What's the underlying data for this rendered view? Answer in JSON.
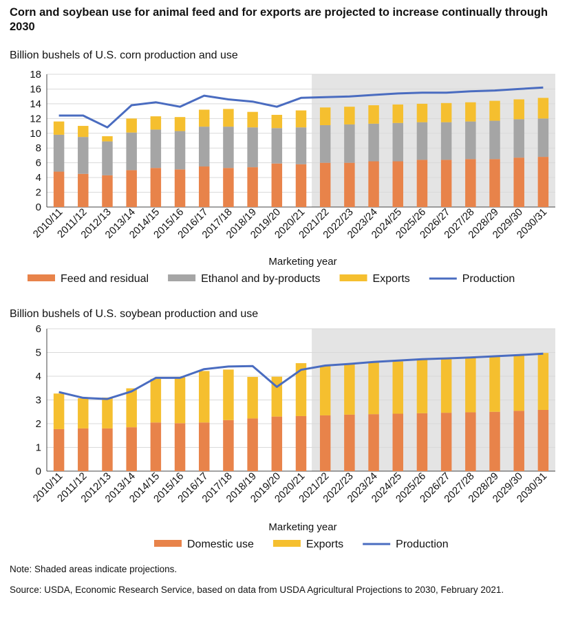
{
  "title": "Corn and soybean use for animal feed and for exports are projected to increase continually through 2030",
  "note": "Note: Shaded areas indicate projections.",
  "source": "Source: USDA, Economic Research Service, based on data from USDA Agricultural Projections to 2030, February 2021.",
  "colors": {
    "feed": "#E8834A",
    "ethanol": "#A5A5A5",
    "exports": "#F5BF2F",
    "production": "#4A6CC0",
    "shade": "#E4E4E4",
    "grid": "#D9D9D9"
  },
  "chart_data": [
    {
      "type": "bar",
      "stacked": true,
      "title": "Billion bushels of U.S. corn production and use",
      "xlabel": "Marketing  year",
      "ylabel": "",
      "ylim": [
        0,
        18
      ],
      "yticks": [
        0,
        2,
        4,
        6,
        8,
        10,
        12,
        14,
        16,
        18
      ],
      "grid": true,
      "projection_start": "2021/22",
      "categories": [
        "2010/11",
        "2011/12",
        "2012/13",
        "2013/14",
        "2014/15",
        "2015/16",
        "2016/17",
        "2017/18",
        "2018/19",
        "2019/20",
        "2020/21",
        "2021/22",
        "2022/23",
        "2023/24",
        "2024/25",
        "2025/26",
        "2026/27",
        "2027/28",
        "2028/29",
        "2029/30",
        "2030/31"
      ],
      "series": [
        {
          "name": "Feed and residual",
          "type": "bar",
          "values": [
            4.8,
            4.5,
            4.3,
            5.0,
            5.3,
            5.1,
            5.5,
            5.3,
            5.4,
            5.9,
            5.8,
            6.0,
            6.0,
            6.2,
            6.2,
            6.4,
            6.4,
            6.5,
            6.5,
            6.7,
            6.8
          ]
        },
        {
          "name": "Ethanol and by-products",
          "type": "bar",
          "values": [
            5.0,
            5.0,
            4.6,
            5.1,
            5.2,
            5.2,
            5.4,
            5.6,
            5.4,
            4.8,
            5.0,
            5.1,
            5.2,
            5.1,
            5.2,
            5.1,
            5.1,
            5.1,
            5.2,
            5.2,
            5.2
          ]
        },
        {
          "name": "Exports",
          "type": "bar",
          "values": [
            1.8,
            1.5,
            0.7,
            1.9,
            1.8,
            1.9,
            2.3,
            2.4,
            2.1,
            1.8,
            2.3,
            2.4,
            2.4,
            2.5,
            2.5,
            2.5,
            2.6,
            2.6,
            2.7,
            2.7,
            2.8
          ]
        },
        {
          "name": "Production",
          "type": "line",
          "values": [
            12.4,
            12.4,
            10.8,
            13.8,
            14.2,
            13.6,
            15.1,
            14.6,
            14.3,
            13.6,
            14.8,
            14.9,
            15.0,
            15.2,
            15.4,
            15.5,
            15.5,
            15.7,
            15.8,
            16.0,
            16.2
          ]
        }
      ],
      "legend": [
        "Feed and residual",
        "Ethanol and by-products",
        "Exports",
        "Production"
      ],
      "legend_position": "bottom"
    },
    {
      "type": "bar",
      "stacked": true,
      "title": "Billion bushels of U.S. soybean production and use",
      "xlabel": "Marketing  year",
      "ylabel": "",
      "ylim": [
        0,
        6
      ],
      "yticks": [
        0,
        1,
        2,
        3,
        4,
        5,
        6
      ],
      "grid": true,
      "projection_start": "2021/22",
      "categories": [
        "2010/11",
        "2011/12",
        "2012/13",
        "2013/14",
        "2014/15",
        "2015/16",
        "2016/17",
        "2017/18",
        "2018/19",
        "2019/20",
        "2020/21",
        "2021/22",
        "2022/23",
        "2023/24",
        "2024/25",
        "2025/26",
        "2026/27",
        "2027/28",
        "2028/29",
        "2029/30",
        "2030/31"
      ],
      "series": [
        {
          "name": "Domestic use",
          "type": "bar",
          "values": [
            1.77,
            1.8,
            1.8,
            1.85,
            2.05,
            2.02,
            2.05,
            2.15,
            2.22,
            2.3,
            2.32,
            2.35,
            2.38,
            2.4,
            2.42,
            2.44,
            2.46,
            2.48,
            2.5,
            2.54,
            2.58
          ]
        },
        {
          "name": "Exports",
          "type": "bar",
          "values": [
            1.5,
            1.27,
            1.3,
            1.64,
            1.84,
            1.94,
            2.17,
            2.13,
            1.75,
            1.68,
            2.23,
            2.1,
            2.15,
            2.18,
            2.2,
            2.25,
            2.27,
            2.3,
            2.33,
            2.33,
            2.4
          ]
        },
        {
          "name": "Production",
          "type": "line",
          "values": [
            3.33,
            3.09,
            3.04,
            3.36,
            3.93,
            3.93,
            4.3,
            4.41,
            4.43,
            3.55,
            4.27,
            4.45,
            4.52,
            4.6,
            4.66,
            4.72,
            4.75,
            4.79,
            4.84,
            4.89,
            4.95
          ]
        }
      ],
      "legend": [
        "Domestic use",
        "Exports",
        "Production"
      ],
      "legend_position": "bottom"
    }
  ]
}
